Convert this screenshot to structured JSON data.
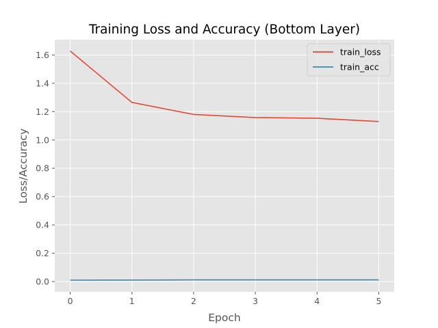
{
  "chart_data": {
    "type": "line",
    "title": "Training Loss and Accuracy (Bottom Layer)",
    "xlabel": "Epoch",
    "ylabel": "Loss/Accuracy",
    "x": [
      0,
      1,
      2,
      3,
      4,
      5
    ],
    "xlim": [
      -0.25,
      5.25
    ],
    "ylim": [
      -0.072,
      1.708
    ],
    "xticks": [
      "0",
      "1",
      "2",
      "3",
      "4",
      "5"
    ],
    "yticks": [
      "0.0",
      "0.2",
      "0.4",
      "0.6",
      "0.8",
      "1.0",
      "1.2",
      "1.4",
      "1.6"
    ],
    "grid": true,
    "legend_position": "top-right",
    "series": [
      {
        "name": "train_loss",
        "color": "#E24A33",
        "values": [
          1.628,
          1.265,
          1.18,
          1.158,
          1.153,
          1.13
        ]
      },
      {
        "name": "train_acc",
        "color": "#348ABD",
        "values": [
          0.01,
          0.011,
          0.012,
          0.012,
          0.012,
          0.012
        ]
      }
    ]
  }
}
